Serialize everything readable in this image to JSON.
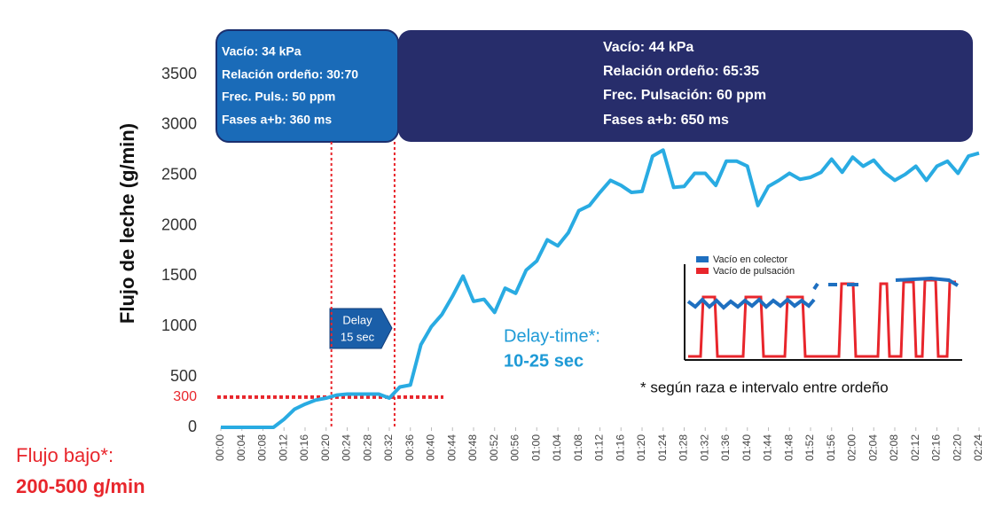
{
  "chart_data": {
    "type": "line",
    "y_label": "Flujo de leche (g/min)",
    "x": [
      0,
      2,
      4,
      6,
      8,
      10,
      12,
      14,
      16,
      18,
      20,
      22,
      24,
      26,
      28,
      30,
      32,
      34,
      36,
      38,
      40,
      42,
      44,
      46,
      48,
      50,
      52,
      54,
      56,
      58,
      60,
      62,
      64,
      66,
      68,
      70,
      72,
      74,
      76,
      78,
      80,
      82,
      84,
      86,
      88,
      90,
      92,
      94,
      96,
      98,
      100,
      102,
      104,
      106,
      108,
      110,
      112,
      114,
      116,
      118,
      120,
      122,
      124,
      126,
      128,
      130,
      132,
      134,
      136,
      138,
      140,
      142,
      144
    ],
    "series": [
      {
        "color": "#29abe2",
        "values": [
          0,
          0,
          0,
          0,
          0,
          0,
          80,
          180,
          230,
          270,
          290,
          320,
          330,
          330,
          330,
          330,
          290,
          400,
          420,
          820,
          1000,
          1120,
          1300,
          1500,
          1250,
          1270,
          1140,
          1380,
          1330,
          1560,
          1650,
          1860,
          1800,
          1930,
          2150,
          2200,
          2330,
          2450,
          2400,
          2330,
          2340,
          2690,
          2750,
          2380,
          2390,
          2520,
          2520,
          2400,
          2640,
          2640,
          2590,
          2200,
          2390,
          2450,
          2520,
          2460,
          2480,
          2530,
          2660,
          2530,
          2680,
          2590,
          2650,
          2530,
          2450,
          2510,
          2590,
          2450,
          2590,
          2640,
          2520,
          2690,
          2720
        ]
      }
    ],
    "xlim": [
      0,
      144
    ],
    "xticks": [
      {
        "value": 0,
        "label": "00:00"
      },
      {
        "value": 4,
        "label": "00:04"
      },
      {
        "value": 8,
        "label": "00:08"
      },
      {
        "value": 12,
        "label": "00:12"
      },
      {
        "value": 16,
        "label": "00:16"
      },
      {
        "value": 20,
        "label": "00:20"
      },
      {
        "value": 24,
        "label": "00:24"
      },
      {
        "value": 28,
        "label": "00:28"
      },
      {
        "value": 32,
        "label": "00:32"
      },
      {
        "value": 36,
        "label": "00:36"
      },
      {
        "value": 40,
        "label": "00:40"
      },
      {
        "value": 44,
        "label": "00:44"
      },
      {
        "value": 48,
        "label": "00:48"
      },
      {
        "value": 52,
        "label": "00:52"
      },
      {
        "value": 56,
        "label": "00:56"
      },
      {
        "value": 60,
        "label": "01:00"
      },
      {
        "value": 64,
        "label": "01:04"
      },
      {
        "value": 68,
        "label": "01:08"
      },
      {
        "value": 72,
        "label": "01:12"
      },
      {
        "value": 76,
        "label": "01:16"
      },
      {
        "value": 80,
        "label": "01:20"
      },
      {
        "value": 84,
        "label": "01:24"
      },
      {
        "value": 88,
        "label": "01:28"
      },
      {
        "value": 92,
        "label": "01:32"
      },
      {
        "value": 96,
        "label": "01:36"
      },
      {
        "value": 100,
        "label": "01:40"
      },
      {
        "value": 104,
        "label": "01:44"
      },
      {
        "value": 108,
        "label": "01:48"
      },
      {
        "value": 112,
        "label": "01:52"
      },
      {
        "value": 116,
        "label": "01:56"
      },
      {
        "value": 120,
        "label": "02:00"
      },
      {
        "value": 124,
        "label": "02:04"
      },
      {
        "value": 128,
        "label": "02:08"
      },
      {
        "value": 132,
        "label": "02:12"
      },
      {
        "value": 136,
        "label": "02:16"
      },
      {
        "value": 140,
        "label": "02:20"
      },
      {
        "value": 144,
        "label": "02:24"
      }
    ],
    "ylim": [
      0,
      3500
    ],
    "yticks": [
      0,
      500,
      1000,
      1500,
      2000,
      2500,
      3000,
      3500
    ],
    "grid": false,
    "threshold": 300,
    "threshold_color": "#e8262c",
    "delay_lines": [
      21,
      33
    ],
    "box1": [
      "Vacío: 34 kPa",
      "Relación ordeño: 30:70",
      "Frec. Puls.: 50 ppm",
      "Fases a+b: 360 ms"
    ],
    "box2": [
      "Vacío: 44 kPa",
      "Relación ordeño: 65:35",
      "Frec. Pulsación: 60 ppm",
      "Fases a+b: 650 ms"
    ],
    "delay_arrow": [
      "Delay",
      "15 sec"
    ],
    "delay_time": [
      "Delay-time*:",
      "10-25 sec"
    ],
    "footnote": "* según raza e intervalo entre ordeño",
    "low_flow": [
      "Flujo bajo*:",
      "200-500 g/min"
    ],
    "inset_legend": [
      {
        "name": "Vacío en colector",
        "color": "#1e6fc0"
      },
      {
        "name": "Vacío de pulsación",
        "color": "#e8262c"
      }
    ]
  }
}
